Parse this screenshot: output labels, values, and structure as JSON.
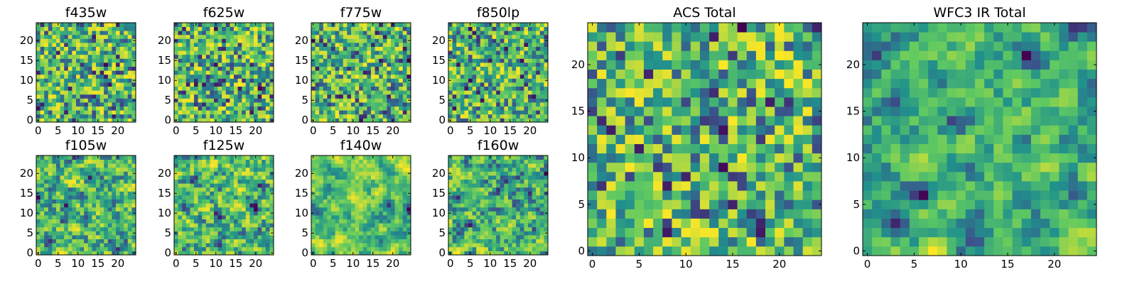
{
  "figure": {
    "colormap": "viridis",
    "colormap_stops": [
      "#440154",
      "#3b528b",
      "#21918c",
      "#5ec962",
      "#fde725"
    ]
  },
  "chart_data": [
    {
      "id": "f435w",
      "type": "heatmap",
      "title": "f435w",
      "grid_size": 25,
      "xticks": [
        0,
        5,
        10,
        15,
        20
      ],
      "yticks": [
        0,
        5,
        10,
        15,
        20
      ],
      "xlim": [
        -0.5,
        24.5
      ],
      "ylim": [
        -0.5,
        24.5
      ],
      "grid": false
    },
    {
      "id": "f625w",
      "type": "heatmap",
      "title": "f625w",
      "grid_size": 25,
      "xticks": [
        0,
        5,
        10,
        15,
        20
      ],
      "yticks": [
        0,
        5,
        10,
        15,
        20
      ],
      "xlim": [
        -0.5,
        24.5
      ],
      "ylim": [
        -0.5,
        24.5
      ],
      "grid": false
    },
    {
      "id": "f775w",
      "type": "heatmap",
      "title": "f775w",
      "grid_size": 25,
      "xticks": [
        0,
        5,
        10,
        15,
        20
      ],
      "yticks": [
        0,
        5,
        10,
        15,
        20
      ],
      "xlim": [
        -0.5,
        24.5
      ],
      "ylim": [
        -0.5,
        24.5
      ],
      "grid": false
    },
    {
      "id": "f850lp",
      "type": "heatmap",
      "title": "f850lp",
      "grid_size": 25,
      "xticks": [
        0,
        5,
        10,
        15,
        20
      ],
      "yticks": [
        0,
        5,
        10,
        15,
        20
      ],
      "xlim": [
        -0.5,
        24.5
      ],
      "ylim": [
        -0.5,
        24.5
      ],
      "grid": false
    },
    {
      "id": "f105w",
      "type": "heatmap",
      "title": "f105w",
      "grid_size": 25,
      "xticks": [
        0,
        5,
        10,
        15,
        20
      ],
      "yticks": [
        0,
        5,
        10,
        15,
        20
      ],
      "xlim": [
        -0.5,
        24.5
      ],
      "ylim": [
        -0.5,
        24.5
      ],
      "grid": false
    },
    {
      "id": "f125w",
      "type": "heatmap",
      "title": "f125w",
      "grid_size": 25,
      "xticks": [
        0,
        5,
        10,
        15,
        20
      ],
      "yticks": [
        0,
        5,
        10,
        15,
        20
      ],
      "xlim": [
        -0.5,
        24.5
      ],
      "ylim": [
        -0.5,
        24.5
      ],
      "grid": false
    },
    {
      "id": "f140w",
      "type": "heatmap",
      "title": "f140w",
      "grid_size": 25,
      "xticks": [
        0,
        5,
        10,
        15,
        20
      ],
      "yticks": [
        0,
        5,
        10,
        15,
        20
      ],
      "xlim": [
        -0.5,
        24.5
      ],
      "ylim": [
        -0.5,
        24.5
      ],
      "grid": false
    },
    {
      "id": "f160w",
      "type": "heatmap",
      "title": "f160w",
      "grid_size": 25,
      "xticks": [
        0,
        5,
        10,
        15,
        20
      ],
      "yticks": [
        0,
        5,
        10,
        15,
        20
      ],
      "xlim": [
        -0.5,
        24.5
      ],
      "ylim": [
        -0.5,
        24.5
      ],
      "grid": false
    },
    {
      "id": "acs-total",
      "type": "heatmap",
      "title": "ACS Total",
      "grid_size": 25,
      "xticks": [
        0,
        5,
        10,
        15,
        20
      ],
      "yticks": [
        0,
        5,
        10,
        15,
        20
      ],
      "xlim": [
        -0.5,
        24.5
      ],
      "ylim": [
        -0.5,
        24.5
      ],
      "grid": false
    },
    {
      "id": "wfc3-ir-total",
      "type": "heatmap",
      "title": "WFC3 IR Total",
      "grid_size": 25,
      "xticks": [
        0,
        5,
        10,
        15,
        20
      ],
      "yticks": [
        0,
        5,
        10,
        15,
        20
      ],
      "xlim": [
        -0.5,
        24.5
      ],
      "ylim": [
        -0.5,
        24.5
      ],
      "grid": false
    }
  ]
}
